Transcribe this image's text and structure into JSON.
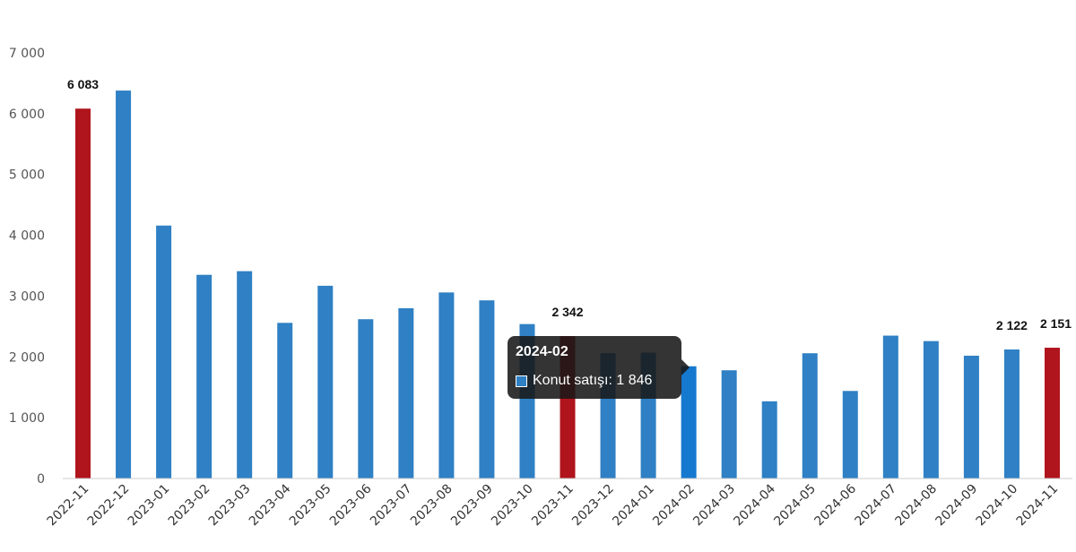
{
  "chart_data": {
    "type": "bar",
    "categories": [
      "2022-11",
      "2022-12",
      "2023-01",
      "2023-02",
      "2023-03",
      "2023-04",
      "2023-05",
      "2023-06",
      "2023-07",
      "2023-08",
      "2023-09",
      "2023-10",
      "2023-11",
      "2023-12",
      "2024-01",
      "2024-02",
      "2024-03",
      "2024-04",
      "2024-05",
      "2024-06",
      "2024-07",
      "2024-08",
      "2024-09",
      "2024-10",
      "2024-11"
    ],
    "series": [
      {
        "name": "Konut satışı",
        "values": [
          6083,
          6380,
          4160,
          3350,
          3410,
          2560,
          3170,
          2620,
          2800,
          3060,
          2930,
          2540,
          2342,
          2060,
          2070,
          1846,
          1780,
          1270,
          2060,
          1440,
          2350,
          2260,
          2020,
          2122,
          2151
        ]
      }
    ],
    "highlighted": [
      "2022-11",
      "2023-11",
      "2024-11"
    ],
    "data_labels": [
      {
        "category": "2022-11",
        "text": "6 083"
      },
      {
        "category": "2023-11",
        "text": "2 342"
      },
      {
        "category": "2024-10",
        "text": "2 122"
      },
      {
        "category": "2024-11",
        "text": "2 151"
      }
    ],
    "yticks": [
      "0",
      "1 000",
      "2 000",
      "3 000",
      "4 000",
      "5 000",
      "6 000",
      "7 000"
    ],
    "ylim": [
      0,
      7000
    ],
    "grid": false,
    "colors": {
      "bar": "#2f80c4",
      "highlight": "#b0141c",
      "hover": "#1679d0"
    },
    "tooltip": {
      "title": "2024-02",
      "label": "Konut satışı: 1 846",
      "category": "2024-02"
    }
  }
}
